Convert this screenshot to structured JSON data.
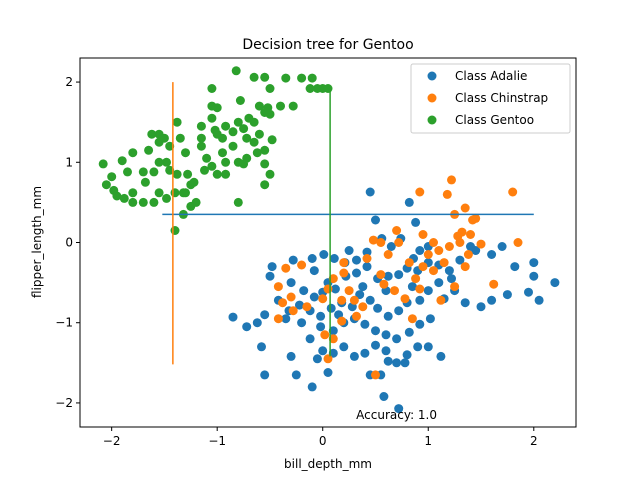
{
  "chart_data": {
    "type": "scatter",
    "title": "Decision tree for Gentoo",
    "xlabel": "bill_depth_mm",
    "ylabel": "flipper_length_mm",
    "xlim": [
      -2.3,
      2.4
    ],
    "ylim": [
      -2.3,
      2.3
    ],
    "xticks": [
      -2,
      -1,
      0,
      1,
      2
    ],
    "yticks": [
      -2,
      -1,
      0,
      1,
      2
    ],
    "xtick_labels": [
      "−2",
      "−1",
      "0",
      "1",
      "2"
    ],
    "ytick_labels": [
      "−2",
      "−1",
      "0",
      "1",
      "2"
    ],
    "legend_position": "top-right",
    "annotation": "Accuracy: 1.0",
    "annotation_xy": [
      0.7,
      -2.15
    ],
    "series": [
      {
        "name": "Class Adalie",
        "color": "#1f77b4",
        "points": [
          [
            0.45,
            0.63
          ],
          [
            0.5,
            0.28
          ],
          [
            0.82,
            0.5
          ],
          [
            0.56,
            0.05
          ],
          [
            0.88,
            0.25
          ],
          [
            0.65,
            -0.05
          ],
          [
            0.74,
            0.05
          ],
          [
            0.92,
            -0.1
          ],
          [
            1.0,
            -0.05
          ],
          [
            0.86,
            -0.2
          ],
          [
            0.42,
            -0.12
          ],
          [
            0.32,
            -0.22
          ],
          [
            0.21,
            -0.25
          ],
          [
            0.11,
            -0.2
          ],
          [
            0.01,
            -0.15
          ],
          [
            -0.1,
            -0.2
          ],
          [
            -0.28,
            -0.22
          ],
          [
            -0.48,
            -0.3
          ],
          [
            -0.5,
            -0.42
          ],
          [
            -0.3,
            -0.5
          ],
          [
            -0.18,
            -0.6
          ],
          [
            -0.08,
            -0.68
          ],
          [
            0.0,
            -0.62
          ],
          [
            0.12,
            -0.58
          ],
          [
            0.22,
            -0.42
          ],
          [
            0.32,
            -0.38
          ],
          [
            0.42,
            -0.3
          ],
          [
            0.52,
            -0.45
          ],
          [
            0.62,
            -0.42
          ],
          [
            0.72,
            -0.4
          ],
          [
            0.8,
            -0.32
          ],
          [
            0.9,
            -0.35
          ],
          [
            1.0,
            -0.25
          ],
          [
            1.1,
            -0.28
          ],
          [
            1.2,
            -0.35
          ],
          [
            1.3,
            -0.22
          ],
          [
            1.45,
            -0.1
          ],
          [
            1.6,
            -0.15
          ],
          [
            1.7,
            -0.05
          ],
          [
            1.82,
            -0.3
          ],
          [
            2.0,
            -0.25
          ],
          [
            2.0,
            -0.42
          ],
          [
            2.2,
            -0.5
          ],
          [
            1.95,
            -0.62
          ],
          [
            1.75,
            -0.65
          ],
          [
            1.6,
            -0.72
          ],
          [
            1.5,
            -0.8
          ],
          [
            2.05,
            -0.72
          ],
          [
            1.35,
            -0.75
          ],
          [
            1.25,
            -0.6
          ],
          [
            1.1,
            -0.5
          ],
          [
            1.0,
            -0.6
          ],
          [
            0.92,
            -0.72
          ],
          [
            0.8,
            -0.75
          ],
          [
            0.72,
            -0.85
          ],
          [
            0.62,
            -0.92
          ],
          [
            0.52,
            -0.82
          ],
          [
            0.45,
            -0.72
          ],
          [
            0.35,
            -0.65
          ],
          [
            0.28,
            -0.8
          ],
          [
            0.18,
            -0.75
          ],
          [
            0.08,
            -0.82
          ],
          [
            -0.02,
            -0.92
          ],
          [
            -0.12,
            -0.85
          ],
          [
            -0.22,
            -0.78
          ],
          [
            -0.32,
            -0.85
          ],
          [
            -0.42,
            -0.72
          ],
          [
            -0.55,
            -0.9
          ],
          [
            -0.62,
            -1.0
          ],
          [
            -0.72,
            -1.05
          ],
          [
            -0.85,
            -0.93
          ],
          [
            -0.58,
            -1.3
          ],
          [
            -0.55,
            -1.65
          ],
          [
            -0.3,
            -1.42
          ],
          [
            -0.25,
            -1.65
          ],
          [
            -0.1,
            -1.8
          ],
          [
            0.05,
            -1.62
          ],
          [
            -0.05,
            -1.45
          ],
          [
            -0.12,
            -1.2
          ],
          [
            -0.02,
            -1.05
          ],
          [
            0.1,
            -1.1
          ],
          [
            0.2,
            -1.0
          ],
          [
            0.3,
            -0.95
          ],
          [
            0.4,
            -1.02
          ],
          [
            0.5,
            -1.1
          ],
          [
            0.6,
            -1.15
          ],
          [
            0.7,
            -1.2
          ],
          [
            0.82,
            -1.12
          ],
          [
            0.92,
            -1.02
          ],
          [
            1.02,
            -0.95
          ],
          [
            0.9,
            -1.3
          ],
          [
            0.8,
            -1.4
          ],
          [
            0.7,
            -1.5
          ],
          [
            0.6,
            -1.35
          ],
          [
            0.5,
            -1.28
          ],
          [
            0.4,
            -1.38
          ],
          [
            0.3,
            -1.42
          ],
          [
            0.2,
            -1.3
          ],
          [
            0.1,
            -1.38
          ],
          [
            0.0,
            -1.35
          ],
          [
            0.45,
            -1.65
          ],
          [
            0.55,
            -1.65
          ],
          [
            0.62,
            -1.48
          ],
          [
            0.78,
            -1.5
          ],
          [
            0.58,
            -1.92
          ],
          [
            0.72,
            -2.07
          ],
          [
            1.0,
            -1.3
          ],
          [
            1.12,
            -1.42
          ],
          [
            -0.2,
            -1.0
          ],
          [
            -0.35,
            -0.95
          ],
          [
            0.15,
            -0.9
          ],
          [
            0.38,
            -0.55
          ],
          [
            0.6,
            -0.6
          ],
          [
            0.85,
            -0.55
          ],
          [
            1.15,
            -0.7
          ],
          [
            1.22,
            -0.45
          ],
          [
            0.25,
            -0.1
          ],
          [
            -0.08,
            -0.35
          ],
          [
            0.05,
            -0.5
          ],
          [
            1.4,
            -0.05
          ]
        ]
      },
      {
        "name": "Class Chinstrap",
        "color": "#ff7f0e",
        "points": [
          [
            0.92,
            0.63
          ],
          [
            1.18,
            0.6
          ],
          [
            1.22,
            0.78
          ],
          [
            1.35,
            0.43
          ],
          [
            1.42,
            0.28
          ],
          [
            1.45,
            0.3
          ],
          [
            1.25,
            0.35
          ],
          [
            1.8,
            0.63
          ],
          [
            1.32,
            0.13
          ],
          [
            1.28,
            0.08
          ],
          [
            1.4,
            0.1
          ],
          [
            1.85,
            0.0
          ],
          [
            1.5,
            -0.02
          ],
          [
            1.38,
            -0.15
          ],
          [
            1.2,
            -0.05
          ],
          [
            1.1,
            -0.1
          ],
          [
            1.15,
            -0.25
          ],
          [
            1.05,
            -0.35
          ],
          [
            0.95,
            -0.3
          ],
          [
            0.82,
            -0.25
          ],
          [
            0.72,
            0.0
          ],
          [
            0.55,
            0.0
          ],
          [
            0.48,
            0.03
          ],
          [
            0.42,
            -0.2
          ],
          [
            0.55,
            -0.4
          ],
          [
            0.58,
            -0.52
          ],
          [
            0.68,
            -0.6
          ],
          [
            0.78,
            -0.7
          ],
          [
            0.85,
            -0.95
          ],
          [
            0.2,
            -0.38
          ],
          [
            0.1,
            -0.45
          ],
          [
            0.25,
            -0.6
          ],
          [
            -0.2,
            -0.28
          ],
          [
            -0.35,
            -0.32
          ],
          [
            -0.42,
            -0.55
          ],
          [
            -0.3,
            -0.68
          ],
          [
            -0.38,
            -0.75
          ],
          [
            -0.42,
            -0.95
          ],
          [
            -0.28,
            -0.85
          ],
          [
            0.05,
            -0.58
          ],
          [
            0.18,
            -0.72
          ],
          [
            0.3,
            -0.72
          ],
          [
            0.32,
            -0.92
          ],
          [
            0.18,
            -0.98
          ],
          [
            0.02,
            -1.15
          ],
          [
            0.05,
            -1.45
          ],
          [
            0.1,
            -1.2
          ],
          [
            1.35,
            -0.3
          ],
          [
            1.62,
            -0.52
          ],
          [
            1.25,
            -0.55
          ],
          [
            0.92,
            -0.58
          ],
          [
            1.12,
            -0.72
          ],
          [
            0.7,
            0.15
          ],
          [
            0.95,
            0.1
          ],
          [
            1.05,
            0.0
          ],
          [
            0.5,
            -1.65
          ],
          [
            0.62,
            -0.15
          ],
          [
            0.2,
            -0.25
          ],
          [
            -0.15,
            -0.8
          ],
          [
            0.38,
            -0.8
          ],
          [
            1.0,
            -0.15
          ],
          [
            1.3,
            0.0
          ],
          [
            0.88,
            -0.45
          ],
          [
            0.0,
            -0.7
          ]
        ]
      },
      {
        "name": "Class Gentoo",
        "color": "#2ca02c",
        "points": [
          [
            -0.82,
            2.14
          ],
          [
            -0.65,
            2.06
          ],
          [
            -0.55,
            2.06
          ],
          [
            -0.5,
            1.92
          ],
          [
            -0.35,
            2.05
          ],
          [
            -0.2,
            2.05
          ],
          [
            -0.1,
            2.05
          ],
          [
            -0.05,
            1.92
          ],
          [
            0.0,
            1.92
          ],
          [
            0.05,
            1.92
          ],
          [
            -0.12,
            1.92
          ],
          [
            -1.05,
            1.92
          ],
          [
            -0.78,
            1.77
          ],
          [
            -0.6,
            1.7
          ],
          [
            -0.55,
            1.62
          ],
          [
            -0.7,
            1.55
          ],
          [
            -0.8,
            1.5
          ],
          [
            -0.92,
            1.45
          ],
          [
            -1.02,
            1.4
          ],
          [
            -1.15,
            1.45
          ],
          [
            -1.05,
            1.7
          ],
          [
            -1.05,
            1.55
          ],
          [
            -1.0,
            1.35
          ],
          [
            -0.95,
            1.3
          ],
          [
            -0.85,
            1.38
          ],
          [
            -0.75,
            1.42
          ],
          [
            -0.65,
            1.5
          ],
          [
            -0.5,
            1.6
          ],
          [
            -0.4,
            1.7
          ],
          [
            -0.6,
            1.35
          ],
          [
            -0.48,
            1.28
          ],
          [
            -0.55,
            1.15
          ],
          [
            -0.62,
            1.12
          ],
          [
            -0.72,
            1.05
          ],
          [
            -0.85,
            1.2
          ],
          [
            -0.95,
            1.12
          ],
          [
            -1.1,
            1.05
          ],
          [
            -1.15,
            1.2
          ],
          [
            -1.3,
            1.12
          ],
          [
            -1.35,
            1.3
          ],
          [
            -1.45,
            1.2
          ],
          [
            -1.55,
            1.35
          ],
          [
            -1.62,
            1.35
          ],
          [
            -1.55,
            1.25
          ],
          [
            -1.48,
            1.0
          ],
          [
            -1.55,
            1.0
          ],
          [
            -1.65,
            1.15
          ],
          [
            -1.8,
            1.12
          ],
          [
            -1.9,
            1.02
          ],
          [
            -1.85,
            0.88
          ],
          [
            -1.7,
            0.88
          ],
          [
            -1.6,
            0.88
          ],
          [
            -1.45,
            0.9
          ],
          [
            -1.38,
            0.85
          ],
          [
            -1.28,
            0.85
          ],
          [
            -1.25,
            0.72
          ],
          [
            -1.32,
            0.62
          ],
          [
            -1.4,
            0.62
          ],
          [
            -1.55,
            0.62
          ],
          [
            -1.48,
            0.55
          ],
          [
            -1.6,
            0.5
          ],
          [
            -1.7,
            0.5
          ],
          [
            -1.8,
            0.5
          ],
          [
            -1.88,
            0.55
          ],
          [
            -1.95,
            0.58
          ],
          [
            -1.98,
            0.65
          ],
          [
            -2.0,
            0.82
          ],
          [
            -2.08,
            0.98
          ],
          [
            -2.05,
            0.72
          ],
          [
            -1.8,
            0.62
          ],
          [
            -1.68,
            0.75
          ],
          [
            -1.22,
            0.75
          ],
          [
            -1.2,
            0.5
          ],
          [
            -1.25,
            0.45
          ],
          [
            -1.32,
            0.35
          ],
          [
            -1.4,
            0.15
          ],
          [
            -1.3,
            0.62
          ],
          [
            -1.0,
            0.85
          ],
          [
            -1.05,
            0.95
          ],
          [
            -0.92,
            1.0
          ],
          [
            -0.8,
            1.0
          ],
          [
            -0.75,
            0.98
          ],
          [
            -0.55,
            0.98
          ],
          [
            -0.5,
            0.85
          ],
          [
            -0.55,
            0.72
          ],
          [
            -0.8,
            0.5
          ],
          [
            -0.72,
            1.3
          ],
          [
            -0.52,
            1.68
          ],
          [
            -0.28,
            1.7
          ],
          [
            -0.65,
            1.25
          ],
          [
            -1.15,
            1.3
          ],
          [
            -1.38,
            1.5
          ],
          [
            -1.5,
            1.3
          ],
          [
            -1.12,
            0.9
          ],
          [
            -0.92,
            0.85
          ],
          [
            -1.0,
            1.68
          ]
        ]
      }
    ],
    "decision_lines": [
      {
        "color": "#1f77b4",
        "from": [
          -1.52,
          0.35
        ],
        "to": [
          2.0,
          0.35
        ]
      },
      {
        "color": "#ff7f0e",
        "from": [
          -1.42,
          2.0
        ],
        "to": [
          -1.42,
          -1.52
        ]
      },
      {
        "color": "#2ca02c",
        "from": [
          0.07,
          1.95
        ],
        "to": [
          0.07,
          -1.42
        ]
      }
    ]
  }
}
